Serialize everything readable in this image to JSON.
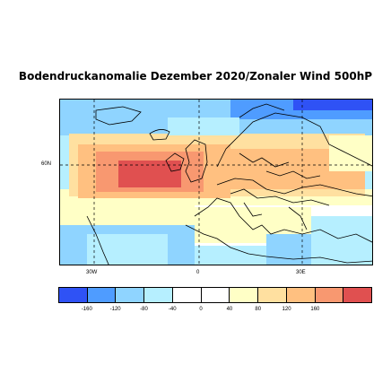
{
  "title": "Bodendruckanomalie Dezember 2020/Zonaler Wind 500hP",
  "axis_labels": {
    "lat_60n": "60N",
    "lon_30w": "30W",
    "lon_0": "0",
    "lon_30e": "30E"
  },
  "colorbar": {
    "colors": [
      "#2f52f5",
      "#4f9cff",
      "#8fd4ff",
      "#b6efff",
      "#ffffff",
      "#ffffff",
      "#ffffc6",
      "#ffe0a0",
      "#ffc080",
      "#f89870",
      "#e05050"
    ],
    "ticks": [
      "-160",
      "-120",
      "-80",
      "-40",
      "0",
      "40",
      "80",
      "120",
      "160"
    ]
  },
  "map_colors": {
    "ocean_base": "#b6efff",
    "light_blue": "#8fd4ff",
    "blue": "#4f9cff",
    "pale_yellow": "#ffffc6",
    "light_orange": "#ffe0a0",
    "orange": "#ffc080",
    "salmon": "#f89870",
    "red": "#e05050",
    "white": "#ffffff"
  }
}
